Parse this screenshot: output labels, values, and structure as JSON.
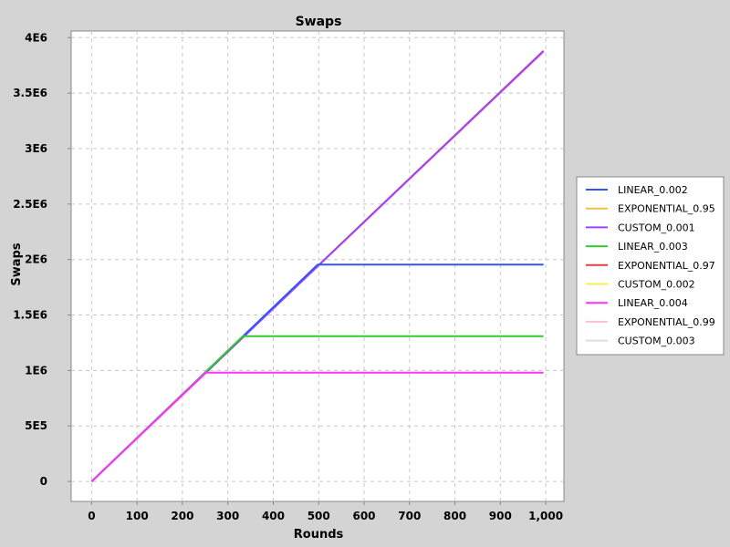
{
  "chart_data": {
    "type": "line",
    "title": "Swaps",
    "xlabel": "Rounds",
    "ylabel": "Swaps",
    "xlim": [
      -45,
      1040
    ],
    "ylim": [
      -180000,
      4060000
    ],
    "x_ticks": [
      0,
      100,
      200,
      300,
      400,
      500,
      600,
      700,
      800,
      900,
      1000
    ],
    "x_tick_labels": [
      "0",
      "100",
      "200",
      "300",
      "400",
      "500",
      "600",
      "700",
      "800",
      "900",
      "1,000"
    ],
    "y_ticks": [
      0,
      500000,
      1000000,
      1500000,
      2000000,
      2500000,
      3000000,
      3500000,
      4000000
    ],
    "y_tick_labels": [
      "0",
      "5E5",
      "1E6",
      "1.5E6",
      "2E6",
      "2.5E6",
      "3E6",
      "3.5E6",
      "4E6"
    ],
    "grid": true,
    "legend_position": "right",
    "series": [
      {
        "name": "LINEAR_0.002",
        "color": "#3355ff",
        "x": [
          0,
          498,
          508,
          995
        ],
        "y": [
          0,
          1955000,
          1955000,
          1955000
        ]
      },
      {
        "name": "EXPONENTIAL_0.95",
        "color": "#f0c040",
        "x": [
          0,
          995
        ],
        "y": [
          0,
          3880000
        ]
      },
      {
        "name": "CUSTOM_0.001",
        "color": "#a040ff",
        "x": [
          0,
          995
        ],
        "y": [
          0,
          3880000
        ]
      },
      {
        "name": "LINEAR_0.003",
        "color": "#33cc33",
        "x": [
          0,
          333,
          343,
          995
        ],
        "y": [
          0,
          1310000,
          1310000,
          1310000
        ]
      },
      {
        "name": "EXPONENTIAL_0.97",
        "color": "#e04040",
        "x": [
          0,
          995
        ],
        "y": [
          0,
          3875000
        ]
      },
      {
        "name": "CUSTOM_0.002",
        "color": "#f8ee50",
        "x": [
          0,
          995
        ],
        "y": [
          0,
          3880000
        ]
      },
      {
        "name": "LINEAR_0.004",
        "color": "#ff33ff",
        "x": [
          0,
          250,
          260,
          995
        ],
        "y": [
          0,
          980000,
          980000,
          980000
        ]
      },
      {
        "name": "EXPONENTIAL_0.99",
        "color": "#ffc0d0",
        "x": [
          0,
          995
        ],
        "y": [
          0,
          3885000
        ]
      },
      {
        "name": "CUSTOM_0.003",
        "color": "#dddddd",
        "x": [
          0,
          995
        ],
        "y": [
          0,
          3880000
        ]
      }
    ]
  }
}
